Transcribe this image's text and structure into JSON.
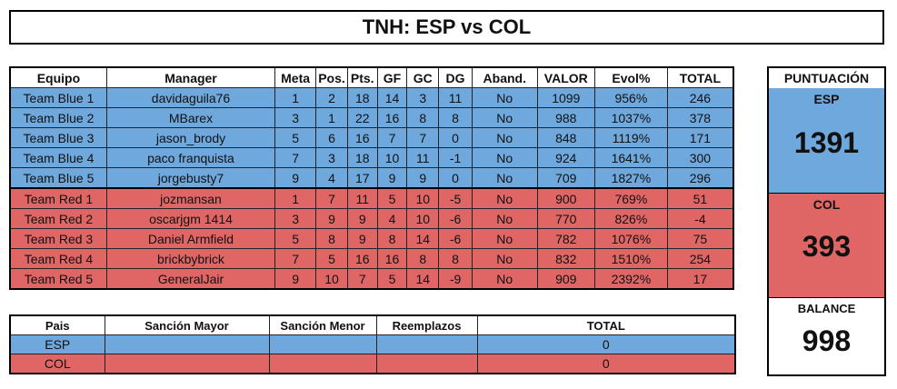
{
  "title": "TNH: ESP vs COL",
  "main_table": {
    "headers": [
      "Equipo",
      "Manager",
      "Meta",
      "Pos.",
      "Pts.",
      "GF",
      "GC",
      "DG",
      "Aband.",
      "VALOR",
      "Evol%",
      "TOTAL"
    ],
    "rows": [
      [
        "Team Blue 1",
        "davidaguila76",
        "1",
        "2",
        "18",
        "14",
        "3",
        "11",
        "No",
        "1099",
        "956%",
        "246"
      ],
      [
        "Team Blue 2",
        "MBarex",
        "3",
        "1",
        "22",
        "16",
        "8",
        "8",
        "No",
        "988",
        "1037%",
        "378"
      ],
      [
        "Team Blue 3",
        "jason_brody",
        "5",
        "6",
        "16",
        "7",
        "7",
        "0",
        "No",
        "848",
        "1119%",
        "171"
      ],
      [
        "Team Blue 4",
        "paco franquista",
        "7",
        "3",
        "18",
        "10",
        "11",
        "-1",
        "No",
        "924",
        "1641%",
        "300"
      ],
      [
        "Team Blue 5",
        "jorgebusty7",
        "9",
        "4",
        "17",
        "9",
        "9",
        "0",
        "No",
        "709",
        "1827%",
        "296"
      ],
      [
        "Team Red 1",
        "jozmansan",
        "1",
        "7",
        "11",
        "5",
        "10",
        "-5",
        "No",
        "900",
        "769%",
        "51"
      ],
      [
        "Team Red 2",
        "oscarjgm 1414",
        "3",
        "9",
        "9",
        "4",
        "10",
        "-6",
        "No",
        "770",
        "826%",
        "-4"
      ],
      [
        "Team Red 3",
        "Daniel Armfield",
        "5",
        "8",
        "9",
        "8",
        "14",
        "-6",
        "No",
        "782",
        "1076%",
        "75"
      ],
      [
        "Team Red 4",
        "brickbybrick",
        "7",
        "5",
        "16",
        "16",
        "8",
        "8",
        "No",
        "832",
        "1510%",
        "254"
      ],
      [
        "Team Red 5",
        "GeneralJair",
        "9",
        "10",
        "7",
        "5",
        "14",
        "-9",
        "No",
        "909",
        "2392%",
        "17"
      ]
    ]
  },
  "penalty_table": {
    "headers": [
      "Pais",
      "Sanción Mayor",
      "Sanción Menor",
      "Reemplazos",
      "TOTAL"
    ],
    "rows": [
      [
        "ESP",
        "",
        "",
        "",
        "0"
      ],
      [
        "COL",
        "",
        "",
        "",
        "0"
      ]
    ]
  },
  "score_panel": {
    "header": "PUNTUACIÓN",
    "esp_label": "ESP",
    "esp_score": "1391",
    "col_label": "COL",
    "col_score": "393",
    "balance_label": "BALANCE",
    "balance_value": "998"
  },
  "colors": {
    "blue": "#6fa8dc",
    "red": "#e06666"
  }
}
